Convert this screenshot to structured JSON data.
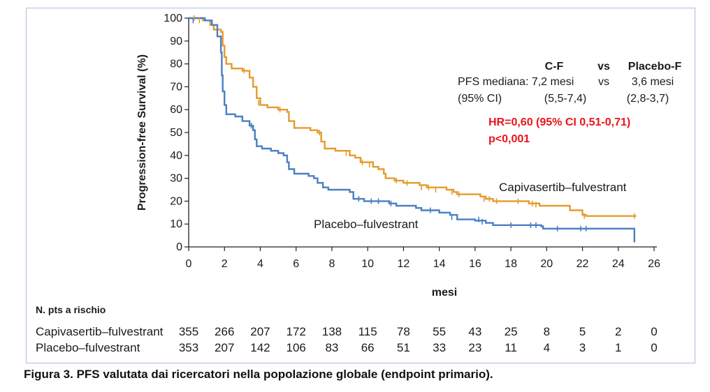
{
  "chart_data": {
    "type": "line",
    "step": true,
    "ylabel": "Progression-free Survival (%)",
    "xlabel": "mesi",
    "xlim": [
      0,
      26
    ],
    "ylim": [
      0,
      100
    ],
    "x_ticks": [
      "0",
      "2",
      "4",
      "6",
      "8",
      "10",
      "12",
      "14",
      "16",
      "18",
      "20",
      "22",
      "24",
      "26"
    ],
    "y_ticks": [
      "0",
      "10",
      "20",
      "30",
      "40",
      "50",
      "60",
      "70",
      "80",
      "90",
      "100"
    ],
    "series": [
      {
        "name": "Capivasertib–fulvestrant",
        "color": "#e59a2e",
        "points": [
          [
            0,
            100
          ],
          [
            0.8,
            99
          ],
          [
            1.2,
            97
          ],
          [
            1.4,
            95
          ],
          [
            1.8,
            94
          ],
          [
            1.9,
            88
          ],
          [
            2.0,
            83
          ],
          [
            2.1,
            80
          ],
          [
            2.4,
            78
          ],
          [
            3.0,
            77
          ],
          [
            3.4,
            74
          ],
          [
            3.6,
            70
          ],
          [
            3.8,
            65
          ],
          [
            4.0,
            62
          ],
          [
            4.4,
            61
          ],
          [
            5.0,
            60
          ],
          [
            5.5,
            59
          ],
          [
            5.6,
            55
          ],
          [
            5.9,
            52
          ],
          [
            6.8,
            51
          ],
          [
            7.2,
            50
          ],
          [
            7.4,
            46
          ],
          [
            7.6,
            43
          ],
          [
            8.2,
            42
          ],
          [
            9.0,
            40
          ],
          [
            9.3,
            39
          ],
          [
            9.6,
            37
          ],
          [
            10.3,
            35
          ],
          [
            10.6,
            34
          ],
          [
            10.9,
            32
          ],
          [
            11.0,
            30
          ],
          [
            11.5,
            29
          ],
          [
            12.0,
            28
          ],
          [
            12.9,
            27
          ],
          [
            13.3,
            26
          ],
          [
            14.4,
            25
          ],
          [
            14.8,
            24
          ],
          [
            15.0,
            23
          ],
          [
            16.3,
            22
          ],
          [
            16.6,
            21
          ],
          [
            17.0,
            20
          ],
          [
            19.0,
            19
          ],
          [
            19.6,
            18
          ],
          [
            21.3,
            16
          ],
          [
            22.0,
            14
          ],
          [
            22.2,
            13.5
          ],
          [
            25.0,
            13.5
          ]
        ],
        "censor": [
          [
            0.3,
            100
          ],
          [
            0.6,
            99
          ],
          [
            3.1,
            77
          ],
          [
            3.9,
            63
          ],
          [
            5.1,
            60
          ],
          [
            7.3,
            50
          ],
          [
            8.8,
            41
          ],
          [
            9.7,
            37
          ],
          [
            10.1,
            36
          ],
          [
            11.6,
            29
          ],
          [
            12.2,
            28
          ],
          [
            13.0,
            26
          ],
          [
            13.4,
            26
          ],
          [
            13.8,
            25
          ],
          [
            14.7,
            24
          ],
          [
            15.1,
            23
          ],
          [
            16.5,
            21
          ],
          [
            16.8,
            21
          ],
          [
            17.2,
            20
          ],
          [
            18.4,
            20
          ],
          [
            19.2,
            19
          ],
          [
            19.4,
            18.5
          ],
          [
            22.1,
            13.5
          ],
          [
            24.9,
            13.5
          ]
        ]
      },
      {
        "name": "Placebo–fulvestrant",
        "color": "#4a7fc4",
        "points": [
          [
            0,
            100
          ],
          [
            0.9,
            99
          ],
          [
            1.3,
            97
          ],
          [
            1.6,
            92
          ],
          [
            1.8,
            85
          ],
          [
            1.85,
            75
          ],
          [
            1.9,
            68
          ],
          [
            2.0,
            62
          ],
          [
            2.1,
            58
          ],
          [
            2.6,
            57
          ],
          [
            3.0,
            55
          ],
          [
            3.4,
            53
          ],
          [
            3.6,
            51
          ],
          [
            3.7,
            47
          ],
          [
            3.8,
            44
          ],
          [
            4.1,
            43
          ],
          [
            4.6,
            42
          ],
          [
            5.0,
            41
          ],
          [
            5.3,
            40
          ],
          [
            5.5,
            37
          ],
          [
            5.6,
            34
          ],
          [
            5.9,
            32
          ],
          [
            6.7,
            31
          ],
          [
            7.0,
            30
          ],
          [
            7.2,
            28
          ],
          [
            7.5,
            26
          ],
          [
            7.8,
            25
          ],
          [
            9.0,
            24
          ],
          [
            9.2,
            21
          ],
          [
            9.8,
            20
          ],
          [
            11.2,
            19
          ],
          [
            11.6,
            18
          ],
          [
            12.7,
            17
          ],
          [
            13.0,
            16
          ],
          [
            14.0,
            15
          ],
          [
            14.6,
            14
          ],
          [
            15.0,
            12
          ],
          [
            16.0,
            11.5
          ],
          [
            16.6,
            10.5
          ],
          [
            17.0,
            9.5
          ],
          [
            19.7,
            9
          ],
          [
            19.8,
            8
          ],
          [
            24.9,
            8
          ],
          [
            24.9,
            2
          ]
        ],
        "censor": [
          [
            0.25,
            99
          ],
          [
            2.0,
            63
          ],
          [
            3.5,
            53
          ],
          [
            3.6,
            52
          ],
          [
            9.5,
            21
          ],
          [
            10.2,
            20
          ],
          [
            10.6,
            20
          ],
          [
            11.3,
            19
          ],
          [
            13.5,
            16
          ],
          [
            14.7,
            13
          ],
          [
            16.2,
            12
          ],
          [
            16.4,
            11
          ],
          [
            18.0,
            9.5
          ],
          [
            19.1,
            9.5
          ],
          [
            19.4,
            9.5
          ],
          [
            20.6,
            8
          ],
          [
            21.9,
            8
          ],
          [
            22.2,
            8
          ]
        ]
      }
    ],
    "annotations": {
      "header_cf": "C-F",
      "header_vs": "vs",
      "header_placebo": "Placebo-F",
      "median_label": "PFS mediana: 7,2 mesi",
      "median_vs": "vs",
      "median_placebo": "3,6 mesi",
      "ci_label": "(95% CI)",
      "ci_cf": "(5,5-7,4)",
      "ci_placebo": "(2,8-3,7)",
      "hr": "HR=0,60 (95% CI 0,51-0,71)",
      "p": "p<0,001"
    },
    "risk_table": {
      "title": "N. pts a rischio",
      "rows": [
        {
          "label": "Capivasertib–fulvestrant",
          "values": [
            "355",
            "266",
            "207",
            "172",
            "138",
            "115",
            "78",
            "55",
            "43",
            "25",
            "8",
            "5",
            "2",
            "0"
          ]
        },
        {
          "label": "Placebo–fulvestrant",
          "values": [
            "353",
            "207",
            "142",
            "106",
            "83",
            "66",
            "51",
            "33",
            "23",
            "11",
            "4",
            "3",
            "1",
            "0"
          ]
        }
      ]
    }
  },
  "caption": "Figura 3. PFS valutata dai ricercatori nella popolazione globale (endpoint primario)."
}
